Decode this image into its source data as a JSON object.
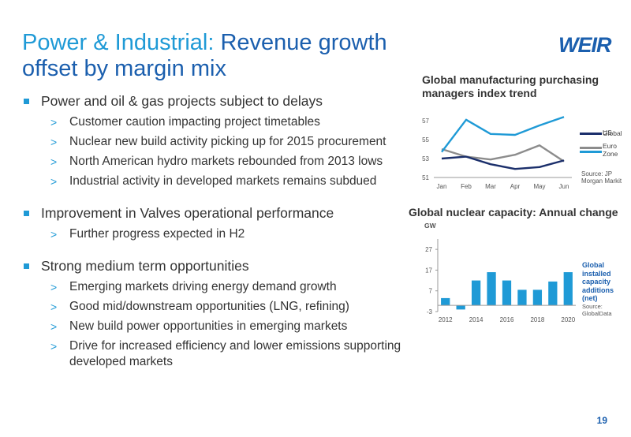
{
  "title": {
    "highlight": "Power & Industrial:",
    "rest": " Revenue growth offset by margin mix"
  },
  "logo_text": "WEIR",
  "bullets": [
    {
      "text": "Power and oil & gas projects subject to delays",
      "subs": [
        "Customer caution impacting project timetables",
        "Nuclear new build activity picking up for 2015 procurement",
        "North American hydro markets rebounded from 2013 lows",
        "Industrial activity in developed markets remains subdued"
      ]
    },
    {
      "text": "Improvement in Valves operational performance",
      "subs": [
        "Further progress expected in H2"
      ]
    },
    {
      "text": "Strong medium term opportunities",
      "subs": [
        "Emerging markets driving energy demand growth",
        "Good mid/downstream opportunities (LNG, refining)",
        "New build power opportunities in emerging markets",
        "Drive for increased efficiency and lower emissions supporting developed markets"
      ]
    }
  ],
  "page_number": "19",
  "colors": {
    "accent": "#1f9ad6",
    "navy": "#1b2f6b",
    "grey": "#8c8c8c",
    "dark_blue": "#1b5fae"
  },
  "chart_data": [
    {
      "type": "line",
      "title": "Global manufacturing purchasing managers index trend",
      "categories": [
        "Jan",
        "Feb",
        "Mar",
        "Apr",
        "May",
        "Jun"
      ],
      "y_ticks": [
        "51",
        "53",
        "55",
        "57"
      ],
      "ylim": [
        51,
        58
      ],
      "series": [
        {
          "name": "Global",
          "color": "#1b2f6b",
          "values": [
            53.0,
            53.2,
            52.4,
            51.9,
            52.1,
            52.8
          ]
        },
        {
          "name": "US",
          "color": "#1f9ad6",
          "values": [
            53.7,
            57.1,
            55.6,
            55.5,
            56.5,
            57.4
          ]
        },
        {
          "name": "Euro Zone",
          "color": "#8c8c8c",
          "values": [
            54.0,
            53.2,
            52.9,
            53.4,
            54.4,
            52.7
          ]
        }
      ],
      "source": "Source: JP Morgan Markit"
    },
    {
      "type": "bar",
      "title": "Global nuclear capacity: Annual change",
      "unit": "GW",
      "x": [
        2012,
        2013,
        2014,
        2015,
        2016,
        2017,
        2018,
        2019,
        2020
      ],
      "x_ticks": [
        "2012",
        "2014",
        "2016",
        "2018",
        "2020"
      ],
      "values": [
        3.5,
        -2,
        12,
        16,
        12,
        7.5,
        7.5,
        11.5,
        16
      ],
      "y_ticks": [
        "-3",
        "7",
        "17",
        "27"
      ],
      "ylim": [
        -3,
        32
      ],
      "color": "#1f9ad6",
      "legend": "Global installed capacity additions (net)",
      "source": "Source: GlobalData"
    }
  ]
}
